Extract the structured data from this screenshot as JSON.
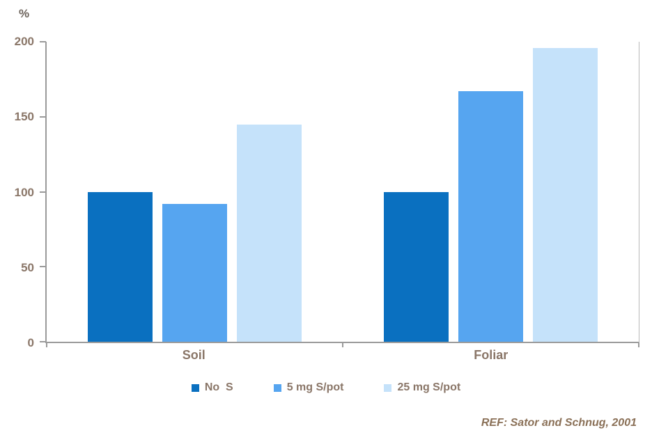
{
  "chart_data": {
    "type": "bar",
    "categories": [
      "Soil",
      "Foliar"
    ],
    "series": [
      {
        "name": "No  S",
        "color": "#0a70c0",
        "values": [
          100,
          100
        ]
      },
      {
        "name": "5 mg S/pot",
        "color": "#56a5f0",
        "values": [
          92,
          167
        ]
      },
      {
        "name": "25 mg S/pot",
        "color": "#c5e2fa",
        "values": [
          145,
          196
        ]
      }
    ],
    "title": "",
    "xlabel": "",
    "ylabel": "%",
    "ylim": [
      0,
      200
    ],
    "yticks": [
      0,
      50,
      100,
      150,
      200
    ],
    "grid": false,
    "legend_position": "bottom"
  },
  "footer": {
    "reference": "REF: Sator and Schnug, 2001"
  },
  "colors": {
    "axis_line": "#9a9a9a",
    "tick_text": "#8a7668",
    "reference_text": "#8a7057"
  }
}
